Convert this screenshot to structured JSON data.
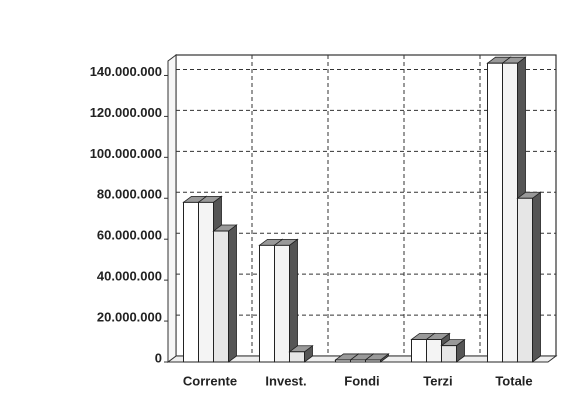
{
  "chart_data": {
    "type": "bar3d",
    "categories": [
      "Corrente",
      "Invest.",
      "Fondi",
      "Terzi",
      "Totale"
    ],
    "series": [
      {
        "color": "#ffffff",
        "values": [
          78000000,
          57000000,
          1000000,
          11000000,
          146000000
        ]
      },
      {
        "color": "#f4f4f4",
        "values": [
          78000000,
          57000000,
          1000000,
          11000000,
          146000000
        ]
      },
      {
        "color": "#e6e6e6",
        "values": [
          64000000,
          5000000,
          1000000,
          8000000,
          80000000
        ]
      }
    ],
    "ylim": [
      0,
      150000000
    ],
    "yticks": [
      0,
      {
        "value": 20000000,
        "label": "20.000.000"
      },
      {
        "value": 40000000,
        "label": "40.000.000"
      },
      {
        "value": 60000000,
        "label": "60.000.000"
      },
      {
        "value": 80000000,
        "label": "80.000.000"
      },
      {
        "value": 100000000,
        "label": "100.000.000"
      },
      {
        "value": 120000000,
        "label": "120.000.000"
      },
      {
        "value": 140000000,
        "label": "140.000.000"
      }
    ],
    "grid": true
  }
}
